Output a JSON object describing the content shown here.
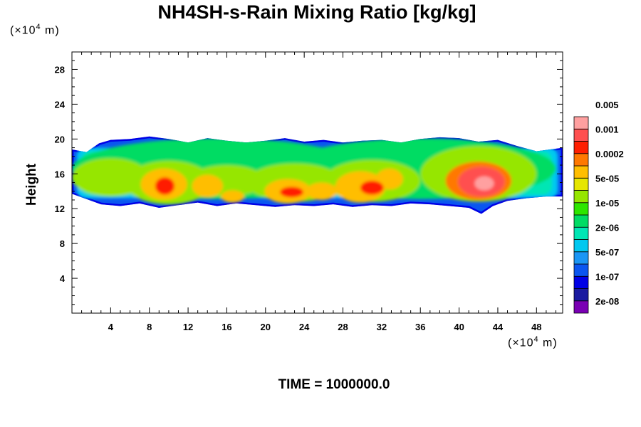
{
  "page": {
    "title": "NH4SH-s-Rain Mixing Ratio [kg/kg]"
  },
  "chart_data": {
    "type": "heatmap",
    "title": "NH4SH-s-Rain Mixing Ratio [kg/kg]",
    "ylabel": "Height",
    "x_unit_prefix": "(×10",
    "x_unit_exp": "4",
    "x_unit_suffix": " m)",
    "y_unit_prefix": "(×10",
    "y_unit_exp": "4",
    "y_unit_suffix": " m)",
    "xlim": [
      0,
      50.7
    ],
    "ylim": [
      0,
      30
    ],
    "x_ticks": [
      4,
      8,
      12,
      16,
      20,
      24,
      28,
      32,
      36,
      40,
      44,
      48
    ],
    "y_ticks": [
      4,
      8,
      12,
      16,
      20,
      24,
      28
    ],
    "x_tick_labels": [
      "4",
      "8",
      "12",
      "16",
      "20",
      "24",
      "28",
      "32",
      "36",
      "40",
      "44",
      "48"
    ],
    "y_tick_labels": [
      "4",
      "8",
      "12",
      "16",
      "20",
      "24",
      "28"
    ],
    "colorbar": {
      "colors": [
        "#7a00b4",
        "#1b1ba0",
        "#0000e6",
        "#0a56f0",
        "#1a96f5",
        "#00c8f0",
        "#00e6b4",
        "#00dc64",
        "#2de600",
        "#96e600",
        "#e6e600",
        "#ffbe00",
        "#ff7800",
        "#ff1e00",
        "#ff5050",
        "#ffa0a0"
      ],
      "labels": [
        "2e-08",
        "1e-07",
        "5e-07",
        "2e-06",
        "1e-05",
        "5e-05",
        "0.0002",
        "0.001",
        "0.005"
      ]
    },
    "band": {
      "bottom": [
        [
          0.0,
          13.7
        ],
        [
          1.5,
          13.1
        ],
        [
          3,
          12.5
        ],
        [
          5,
          12.3
        ],
        [
          7,
          12.6
        ],
        [
          9,
          12.1
        ],
        [
          11,
          12.4
        ],
        [
          13,
          12.7
        ],
        [
          15,
          12.3
        ],
        [
          17,
          12.6
        ],
        [
          19,
          12.4
        ],
        [
          21,
          12.2
        ],
        [
          23,
          12.4
        ],
        [
          25,
          12.3
        ],
        [
          27,
          12.5
        ],
        [
          29,
          12.2
        ],
        [
          31,
          12.4
        ],
        [
          33,
          12.3
        ],
        [
          35,
          12.6
        ],
        [
          37,
          12.5
        ],
        [
          39,
          12.3
        ],
        [
          41,
          12.1
        ],
        [
          42.3,
          11.4
        ],
        [
          43.5,
          12.3
        ],
        [
          45,
          12.9
        ],
        [
          47,
          13.2
        ],
        [
          49,
          13.4
        ],
        [
          50.7,
          13.4
        ]
      ],
      "top": [
        [
          0.0,
          18.8
        ],
        [
          1.5,
          18.5
        ],
        [
          2.8,
          19.5
        ],
        [
          4,
          19.9
        ],
        [
          6,
          20.0
        ],
        [
          8,
          20.3
        ],
        [
          10,
          20.0
        ],
        [
          12,
          19.6
        ],
        [
          14,
          20.1
        ],
        [
          16,
          19.8
        ],
        [
          18,
          19.6
        ],
        [
          20,
          19.8
        ],
        [
          22,
          20.1
        ],
        [
          24,
          19.7
        ],
        [
          26,
          19.9
        ],
        [
          28,
          19.6
        ],
        [
          30,
          19.8
        ],
        [
          32,
          19.9
        ],
        [
          34,
          19.6
        ],
        [
          36,
          20.0
        ],
        [
          38,
          20.2
        ],
        [
          40,
          20.1
        ],
        [
          42,
          19.7
        ],
        [
          44,
          19.9
        ],
        [
          46,
          19.2
        ],
        [
          48,
          18.6
        ],
        [
          50.7,
          19.0
        ]
      ]
    },
    "cells": [
      {
        "x": 15,
        "y": 16.6,
        "rx": 15,
        "ry": 3.5,
        "level": 7
      },
      {
        "x": 36,
        "y": 16.6,
        "rx": 14,
        "ry": 3.5,
        "level": 7
      },
      {
        "x": 4,
        "y": 15.6,
        "rx": 4,
        "ry": 2.2,
        "level": 9
      },
      {
        "x": 10,
        "y": 15.0,
        "rx": 4.5,
        "ry": 2.5,
        "level": 9
      },
      {
        "x": 16,
        "y": 15.2,
        "rx": 4,
        "ry": 1.8,
        "level": 9
      },
      {
        "x": 23,
        "y": 15.0,
        "rx": 5,
        "ry": 2.2,
        "level": 9
      },
      {
        "x": 31,
        "y": 15.2,
        "rx": 5,
        "ry": 2.4,
        "level": 9
      },
      {
        "x": 42,
        "y": 16.0,
        "rx": 6,
        "ry": 3.2,
        "level": 9
      },
      {
        "x": 9.5,
        "y": 14.8,
        "rx": 2.4,
        "ry": 1.8,
        "level": 11
      },
      {
        "x": 14,
        "y": 14.6,
        "rx": 1.6,
        "ry": 1.3,
        "level": 11
      },
      {
        "x": 16.6,
        "y": 13.4,
        "rx": 1.2,
        "ry": 0.7,
        "level": 11
      },
      {
        "x": 22.3,
        "y": 14.0,
        "rx": 2.4,
        "ry": 1.4,
        "level": 11
      },
      {
        "x": 25.8,
        "y": 14.0,
        "rx": 1.6,
        "ry": 1.0,
        "level": 11
      },
      {
        "x": 29.8,
        "y": 14.5,
        "rx": 2.6,
        "ry": 1.8,
        "level": 11
      },
      {
        "x": 32.8,
        "y": 15.4,
        "rx": 1.4,
        "ry": 1.2,
        "level": 11
      },
      {
        "x": 42,
        "y": 15.2,
        "rx": 3.4,
        "ry": 2.2,
        "level": 12
      },
      {
        "x": 9.6,
        "y": 14.6,
        "rx": 1.0,
        "ry": 1.0,
        "level": 13
      },
      {
        "x": 22.7,
        "y": 13.9,
        "rx": 1.2,
        "ry": 0.6,
        "level": 13
      },
      {
        "x": 31,
        "y": 14.4,
        "rx": 1.2,
        "ry": 0.8,
        "level": 13
      },
      {
        "x": 42.3,
        "y": 15.1,
        "rx": 2.4,
        "ry": 1.7,
        "level": 14
      },
      {
        "x": 42.6,
        "y": 14.9,
        "rx": 1.0,
        "ry": 0.8,
        "level": 15
      }
    ]
  },
  "footer": {
    "time_label": "TIME = 1000000.0"
  }
}
